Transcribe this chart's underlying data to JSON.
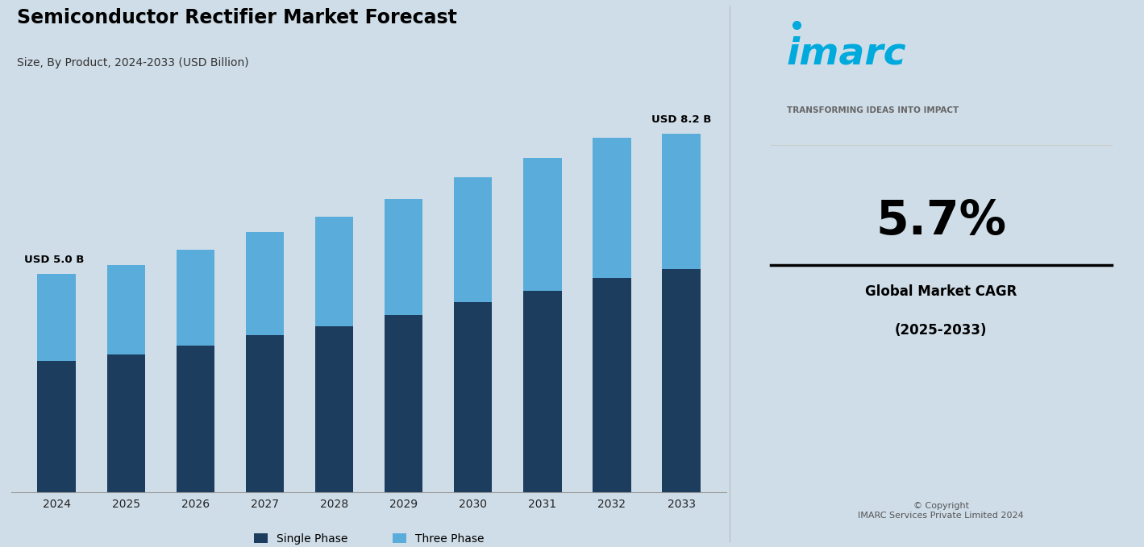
{
  "title": "Semiconductor Rectifier Market Forecast",
  "subtitle": "Size, By Product, 2024-2033 (USD Billion)",
  "years": [
    "2024",
    "2025",
    "2026",
    "2027",
    "2028",
    "2029",
    "2030",
    "2031",
    "2032",
    "2033"
  ],
  "single_phase": [
    3.0,
    3.15,
    3.35,
    3.6,
    3.8,
    4.05,
    4.35,
    4.6,
    4.9,
    5.1
  ],
  "three_phase": [
    2.0,
    2.05,
    2.2,
    2.35,
    2.5,
    2.65,
    2.85,
    3.05,
    3.2,
    3.1
  ],
  "label_first": "USD 5.0 B",
  "label_last": "USD 8.2 B",
  "single_phase_color": "#1c3d5e",
  "three_phase_color": "#5aaddb",
  "background_color": "#cfdde8",
  "bar_width": 0.55,
  "ylim_max": 10.5,
  "legend_single": "Single Phase",
  "legend_three": "Three Phase",
  "cagr_text": "5.7%",
  "cagr_label1": "Global Market CAGR",
  "cagr_label2": "(2025-2033)",
  "copyright_text": "© Copyright\nIMARC Services Private Limited 2024",
  "imarc_color": "#00aadd",
  "tagline": "TRANSFORMING IDEAS INTO IMPACT"
}
